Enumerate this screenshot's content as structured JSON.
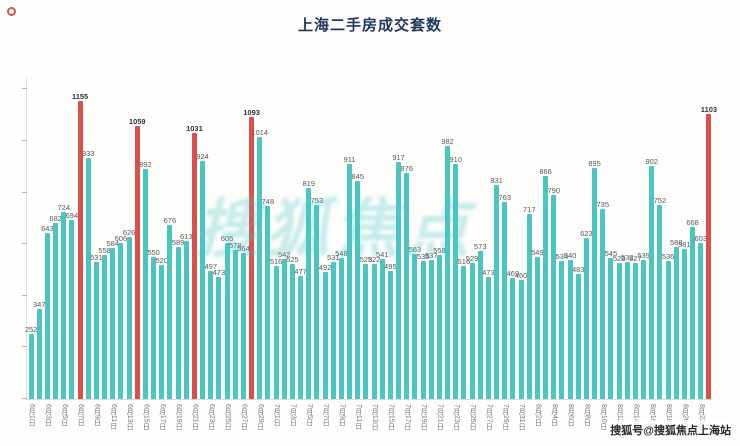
{
  "title": "上海二手房成交套数",
  "watermark": "搜狐焦点",
  "credit": "搜狐号@搜狐焦点上海站",
  "colors": {
    "bar": "#4ac6c1",
    "highlight": "#dd4f4b",
    "title": "#1f3a60"
  },
  "chart_data": {
    "type": "bar",
    "title": "上海二手房成交套数",
    "xlabel": "",
    "ylabel": "",
    "ylim": [
      0,
      1200
    ],
    "grid": false,
    "legend": null,
    "label_every": 2,
    "highlight_rule": "red bars mark peak days",
    "points": [
      {
        "date": "6月1日",
        "value": 252,
        "highlight": false
      },
      {
        "date": "6月2日",
        "value": 347,
        "highlight": false
      },
      {
        "date": "6月3日",
        "value": 643,
        "highlight": false
      },
      {
        "date": "6月4日",
        "value": 682,
        "highlight": false
      },
      {
        "date": "6月5日",
        "value": 724,
        "highlight": false
      },
      {
        "date": "6月6日",
        "value": 694,
        "highlight": false
      },
      {
        "date": "6月7日",
        "value": 1155,
        "highlight": true
      },
      {
        "date": "6月8日",
        "value": 933,
        "highlight": false
      },
      {
        "date": "6月9日",
        "value": 531,
        "highlight": false
      },
      {
        "date": "6月10日",
        "value": 558,
        "highlight": false
      },
      {
        "date": "6月11日",
        "value": 584,
        "highlight": false
      },
      {
        "date": "6月12日",
        "value": 606,
        "highlight": false
      },
      {
        "date": "6月13日",
        "value": 626,
        "highlight": false
      },
      {
        "date": "6月14日",
        "value": 1059,
        "highlight": true
      },
      {
        "date": "6月15日",
        "value": 892,
        "highlight": false
      },
      {
        "date": "6月16日",
        "value": 550,
        "highlight": false
      },
      {
        "date": "6月17日",
        "value": 520,
        "highlight": false
      },
      {
        "date": "6月18日",
        "value": 676,
        "highlight": false
      },
      {
        "date": "6月19日",
        "value": 589,
        "highlight": false
      },
      {
        "date": "6月20日",
        "value": 613,
        "highlight": false
      },
      {
        "date": "6月21日",
        "value": 1031,
        "highlight": true
      },
      {
        "date": "6月22日",
        "value": 924,
        "highlight": false
      },
      {
        "date": "6月23日",
        "value": 497,
        "highlight": false
      },
      {
        "date": "6月24日",
        "value": 473,
        "highlight": false
      },
      {
        "date": "6月25日",
        "value": 605,
        "highlight": false
      },
      {
        "date": "6月26日",
        "value": 578,
        "highlight": false
      },
      {
        "date": "6月27日",
        "value": 564,
        "highlight": false
      },
      {
        "date": "6月28日",
        "value": 1093,
        "highlight": true
      },
      {
        "date": "6月29日",
        "value": 1014,
        "highlight": false
      },
      {
        "date": "6月30日",
        "value": 748,
        "highlight": false
      },
      {
        "date": "7月1日",
        "value": 516,
        "highlight": false
      },
      {
        "date": "7月2日",
        "value": 542,
        "highlight": false
      },
      {
        "date": "7月3日",
        "value": 525,
        "highlight": false
      },
      {
        "date": "7月4日",
        "value": 477,
        "highlight": false
      },
      {
        "date": "7月5日",
        "value": 819,
        "highlight": false
      },
      {
        "date": "7月6日",
        "value": 753,
        "highlight": false
      },
      {
        "date": "7月7日",
        "value": 492,
        "highlight": false
      },
      {
        "date": "7月8日",
        "value": 531,
        "highlight": false
      },
      {
        "date": "7月9日",
        "value": 548,
        "highlight": false
      },
      {
        "date": "7月10日",
        "value": 911,
        "highlight": false
      },
      {
        "date": "7月11日",
        "value": 845,
        "highlight": false
      },
      {
        "date": "7月12日",
        "value": 523,
        "highlight": false
      },
      {
        "date": "7月13日",
        "value": 522,
        "highlight": false
      },
      {
        "date": "7月14日",
        "value": 541,
        "highlight": false
      },
      {
        "date": "7月15日",
        "value": 495,
        "highlight": false
      },
      {
        "date": "7月16日",
        "value": 917,
        "highlight": false
      },
      {
        "date": "7月17日",
        "value": 876,
        "highlight": false
      },
      {
        "date": "7月18日",
        "value": 563,
        "highlight": false
      },
      {
        "date": "7月19日",
        "value": 535,
        "highlight": false
      },
      {
        "date": "7月20日",
        "value": 537,
        "highlight": false
      },
      {
        "date": "7月21日",
        "value": 558,
        "highlight": false
      },
      {
        "date": "7月22日",
        "value": 982,
        "highlight": false
      },
      {
        "date": "7月23日",
        "value": 910,
        "highlight": false
      },
      {
        "date": "7月24日",
        "value": 516,
        "highlight": false
      },
      {
        "date": "7月25日",
        "value": 529,
        "highlight": false
      },
      {
        "date": "7月26日",
        "value": 573,
        "highlight": false
      },
      {
        "date": "7月27日",
        "value": 473,
        "highlight": false
      },
      {
        "date": "7月28日",
        "value": 831,
        "highlight": false
      },
      {
        "date": "7月29日",
        "value": 763,
        "highlight": false
      },
      {
        "date": "7月30日",
        "value": 469,
        "highlight": false
      },
      {
        "date": "7月31日",
        "value": 460,
        "highlight": false
      },
      {
        "date": "8月1日",
        "value": 717,
        "highlight": false
      },
      {
        "date": "8月2日",
        "value": 549,
        "highlight": false
      },
      {
        "date": "8月3日",
        "value": 866,
        "highlight": false
      },
      {
        "date": "8月4日",
        "value": 790,
        "highlight": false
      },
      {
        "date": "8月5日",
        "value": 534,
        "highlight": false
      },
      {
        "date": "8月6日",
        "value": 540,
        "highlight": false
      },
      {
        "date": "8月7日",
        "value": 483,
        "highlight": false
      },
      {
        "date": "8月8日",
        "value": 623,
        "highlight": false
      },
      {
        "date": "8月9日",
        "value": 895,
        "highlight": false
      },
      {
        "date": "8月10日",
        "value": 735,
        "highlight": false
      },
      {
        "date": "8月11日",
        "value": 545,
        "highlight": false
      },
      {
        "date": "8月12日",
        "value": 528,
        "highlight": false
      },
      {
        "date": "8月13日",
        "value": 532,
        "highlight": false
      },
      {
        "date": "8月14日",
        "value": 527,
        "highlight": false
      },
      {
        "date": "8月15日",
        "value": 539,
        "highlight": false
      },
      {
        "date": "8月16日",
        "value": 902,
        "highlight": false
      },
      {
        "date": "8月17日",
        "value": 752,
        "highlight": false
      },
      {
        "date": "8月18日",
        "value": 536,
        "highlight": false
      },
      {
        "date": "8月19日",
        "value": 588,
        "highlight": false
      },
      {
        "date": "8月20日",
        "value": 581,
        "highlight": false
      },
      {
        "date": "8月21日",
        "value": 668,
        "highlight": false
      },
      {
        "date": "8月22日",
        "value": 603,
        "highlight": false
      },
      {
        "date": "8月23日",
        "value": 1103,
        "highlight": true
      }
    ]
  }
}
